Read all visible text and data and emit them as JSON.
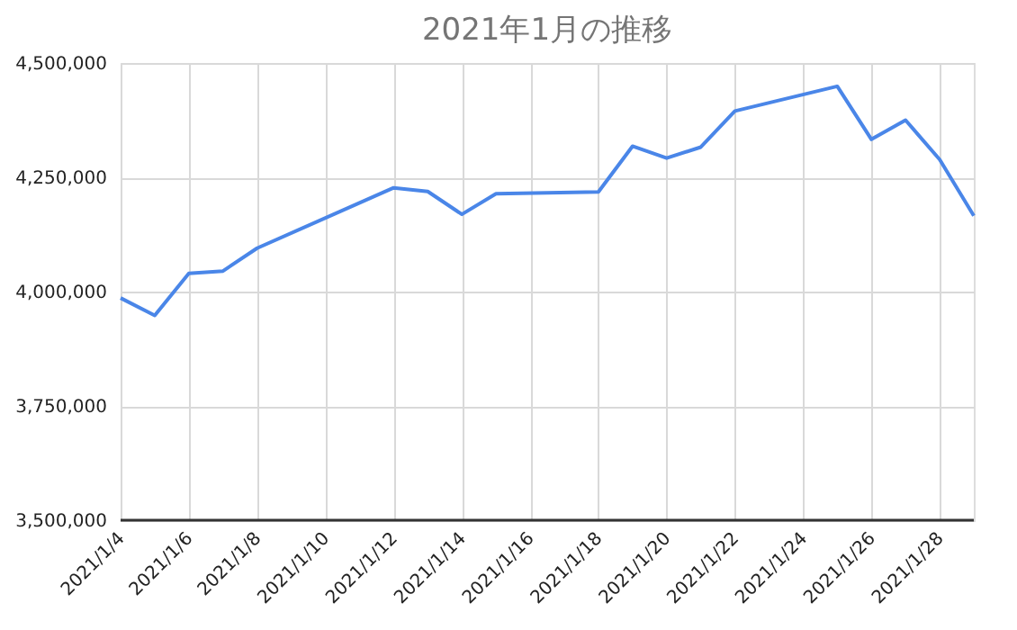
{
  "chart_data": {
    "type": "line",
    "title": "2021年1月の推移",
    "x": [
      "2021-01-04",
      "2021-01-05",
      "2021-01-06",
      "2021-01-07",
      "2021-01-08",
      "2021-01-12",
      "2021-01-13",
      "2021-01-14",
      "2021-01-15",
      "2021-01-18",
      "2021-01-19",
      "2021-01-20",
      "2021-01-21",
      "2021-01-22",
      "2021-01-25",
      "2021-01-26",
      "2021-01-27",
      "2021-01-28",
      "2021-01-29"
    ],
    "series": [
      {
        "color": "#4a86e8",
        "values": [
          3986000,
          3948000,
          4040000,
          4045000,
          4095000,
          4227000,
          4219000,
          4169000,
          4214000,
          4218000,
          4318000,
          4292000,
          4316000,
          4395000,
          4449000,
          4333000,
          4375000,
          4289000,
          4166000
        ]
      }
    ],
    "xlim": [
      "2021-01-04",
      "2021-01-29"
    ],
    "xticks": [
      {
        "value": "2021-01-04",
        "label": "2021/1/4"
      },
      {
        "value": "2021-01-06",
        "label": "2021/1/6"
      },
      {
        "value": "2021-01-08",
        "label": "2021/1/8"
      },
      {
        "value": "2021-01-10",
        "label": "2021/1/10"
      },
      {
        "value": "2021-01-12",
        "label": "2021/1/12"
      },
      {
        "value": "2021-01-14",
        "label": "2021/1/14"
      },
      {
        "value": "2021-01-16",
        "label": "2021/1/16"
      },
      {
        "value": "2021-01-18",
        "label": "2021/1/18"
      },
      {
        "value": "2021-01-20",
        "label": "2021/1/20"
      },
      {
        "value": "2021-01-22",
        "label": "2021/1/22"
      },
      {
        "value": "2021-01-24",
        "label": "2021/1/24"
      },
      {
        "value": "2021-01-26",
        "label": "2021/1/26"
      },
      {
        "value": "2021-01-28",
        "label": "2021/1/28"
      }
    ],
    "ylim": [
      3500000,
      4500000
    ],
    "yticks": [
      {
        "value": 3500000,
        "label": "3,500,000"
      },
      {
        "value": 3750000,
        "label": "3,750,000"
      },
      {
        "value": 4000000,
        "label": "4,000,000"
      },
      {
        "value": 4250000,
        "label": "4,250,000"
      },
      {
        "value": 4500000,
        "label": "4,500,000"
      }
    ],
    "grid": true,
    "legend": false,
    "marker": "none",
    "line_style": "solid"
  }
}
